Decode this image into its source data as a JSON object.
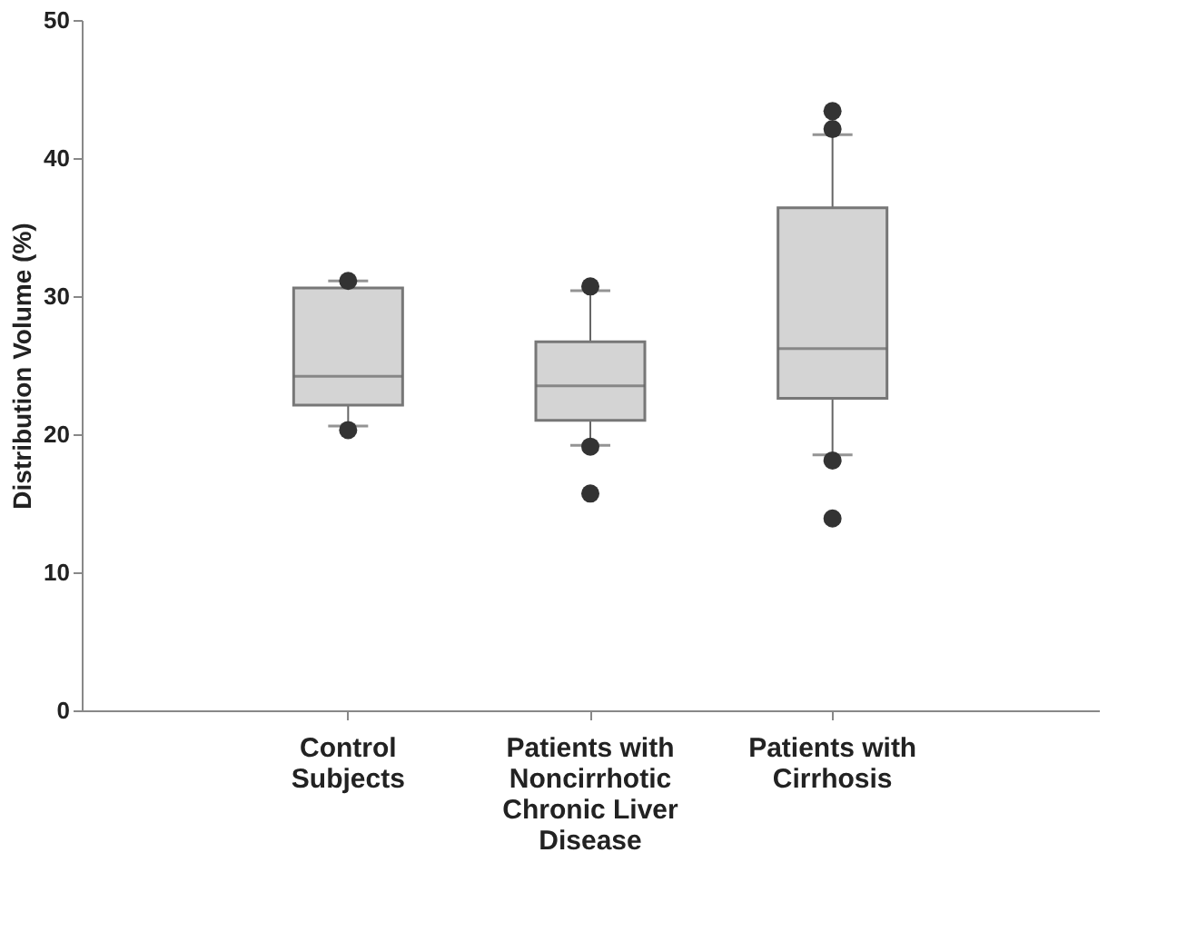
{
  "chart_data": {
    "type": "box",
    "ylabel": "Distribution Volume (%)",
    "categories": [
      "Control Subjects",
      "Patients with Noncirrhotic Chronic Liver Disease",
      "Patients with Cirrhosis"
    ],
    "boxes": [
      {
        "low": 20.6,
        "q1": 22.1,
        "median": 24.2,
        "q3": 30.6,
        "high": 31.1,
        "outliers": [
          31.1,
          20.3
        ]
      },
      {
        "low": 19.2,
        "q1": 21.0,
        "median": 23.5,
        "q3": 26.7,
        "high": 30.4,
        "outliers": [
          30.7,
          19.1,
          15.7
        ]
      },
      {
        "low": 18.5,
        "q1": 22.6,
        "median": 26.2,
        "q3": 36.4,
        "high": 41.7,
        "outliers": [
          43.4,
          42.1,
          18.1,
          13.9
        ]
      }
    ],
    "color": "#d4d4d4",
    "ylim": [
      0,
      50
    ],
    "yticks": [
      0,
      10,
      20,
      30,
      40,
      50
    ],
    "grid": false
  }
}
